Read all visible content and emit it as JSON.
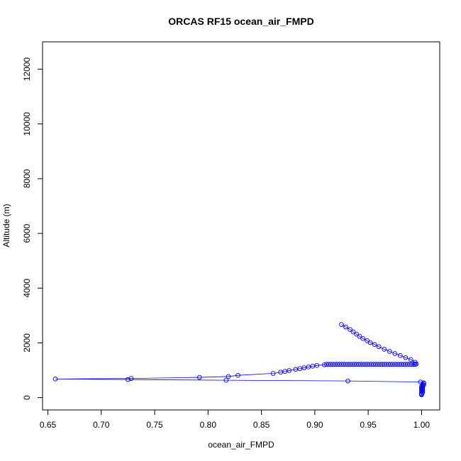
{
  "chart_data": {
    "type": "scatter",
    "title": "ORCAS RF15 ocean_air_FMPD",
    "xlabel": "ocean_air_FMPD",
    "ylabel": "Altitude (m)",
    "xlim": [
      0.645,
      1.017
    ],
    "ylim": [
      -450,
      13000
    ],
    "x_ticks": [
      0.65,
      0.7,
      0.75,
      0.8,
      0.85,
      0.9,
      0.95,
      1.0
    ],
    "x_tick_labels": [
      "0.65",
      "0.70",
      "0.75",
      "0.80",
      "0.85",
      "0.90",
      "0.95",
      "1.00"
    ],
    "y_ticks": [
      0,
      2000,
      4000,
      6000,
      8000,
      10000,
      12000
    ],
    "y_tick_labels": [
      "0",
      "2000",
      "4000",
      "6000",
      "8000",
      "10000",
      "12000"
    ],
    "grid": false,
    "series": [
      {
        "color": "#0000ff",
        "marker": "open-circle",
        "line": true,
        "points": [
          [
            1.0,
            100
          ],
          [
            1.0,
            130
          ],
          [
            1.0,
            160
          ],
          [
            1.001,
            190
          ],
          [
            1.0,
            220
          ],
          [
            1.001,
            250
          ],
          [
            1.0,
            280
          ],
          [
            1.001,
            310
          ],
          [
            1.0,
            340
          ],
          [
            1.001,
            370
          ],
          [
            1.0,
            400
          ],
          [
            1.001,
            430
          ],
          [
            1.002,
            460
          ],
          [
            1.001,
            490
          ],
          [
            1.002,
            520
          ],
          [
            1.002,
            540
          ],
          [
            0.999,
            570
          ],
          [
            0.931,
            610
          ],
          [
            0.817,
            635
          ],
          [
            0.725,
            660
          ],
          [
            0.657,
            680
          ],
          [
            0.728,
            700
          ],
          [
            0.792,
            740
          ],
          [
            0.819,
            770
          ],
          [
            0.828,
            815
          ],
          [
            0.861,
            885
          ],
          [
            0.868,
            930
          ],
          [
            0.872,
            960
          ],
          [
            0.876,
            990
          ],
          [
            0.882,
            1030
          ],
          [
            0.886,
            1060
          ],
          [
            0.89,
            1090
          ],
          [
            0.894,
            1120
          ],
          [
            0.898,
            1150
          ],
          [
            0.902,
            1175
          ],
          [
            0.909,
            1200
          ],
          [
            0.911,
            1215
          ],
          [
            0.913,
            1215
          ],
          [
            0.915,
            1215
          ],
          [
            0.917,
            1215
          ],
          [
            0.919,
            1215
          ],
          [
            0.921,
            1215
          ],
          [
            0.923,
            1215
          ],
          [
            0.925,
            1215
          ],
          [
            0.927,
            1215
          ],
          [
            0.929,
            1215
          ],
          [
            0.931,
            1215
          ],
          [
            0.933,
            1215
          ],
          [
            0.935,
            1215
          ],
          [
            0.937,
            1215
          ],
          [
            0.939,
            1215
          ],
          [
            0.941,
            1215
          ],
          [
            0.943,
            1215
          ],
          [
            0.945,
            1215
          ],
          [
            0.947,
            1215
          ],
          [
            0.949,
            1215
          ],
          [
            0.951,
            1215
          ],
          [
            0.953,
            1215
          ],
          [
            0.955,
            1215
          ],
          [
            0.957,
            1215
          ],
          [
            0.959,
            1215
          ],
          [
            0.961,
            1215
          ],
          [
            0.963,
            1215
          ],
          [
            0.965,
            1215
          ],
          [
            0.967,
            1215
          ],
          [
            0.969,
            1215
          ],
          [
            0.971,
            1215
          ],
          [
            0.973,
            1215
          ],
          [
            0.975,
            1215
          ],
          [
            0.977,
            1215
          ],
          [
            0.979,
            1215
          ],
          [
            0.981,
            1215
          ],
          [
            0.983,
            1215
          ],
          [
            0.985,
            1215
          ],
          [
            0.987,
            1215
          ],
          [
            0.989,
            1215
          ],
          [
            0.991,
            1215
          ],
          [
            0.993,
            1215
          ],
          [
            0.994,
            1215
          ],
          [
            0.995,
            1230
          ],
          [
            0.994,
            1290
          ],
          [
            0.99,
            1390
          ],
          [
            0.985,
            1460
          ],
          [
            0.98,
            1540
          ],
          [
            0.975,
            1610
          ],
          [
            0.97,
            1690
          ],
          [
            0.965,
            1770
          ],
          [
            0.96,
            1860
          ],
          [
            0.956,
            1940
          ],
          [
            0.952,
            2010
          ],
          [
            0.949,
            2080
          ],
          [
            0.945,
            2160
          ],
          [
            0.942,
            2240
          ],
          [
            0.939,
            2320
          ],
          [
            0.936,
            2400
          ],
          [
            0.933,
            2490
          ],
          [
            0.929,
            2580
          ],
          [
            0.925,
            2670
          ]
        ]
      }
    ]
  }
}
